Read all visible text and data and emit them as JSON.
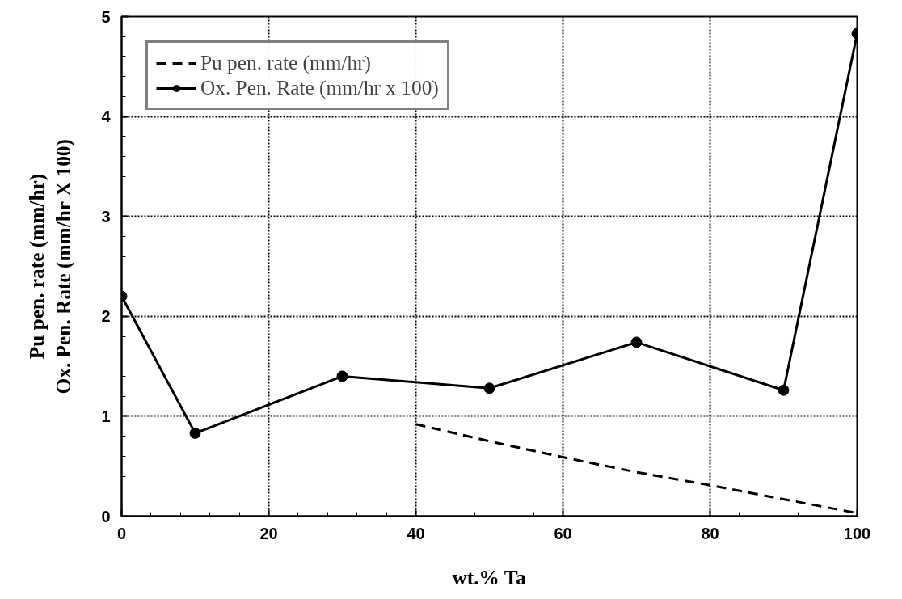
{
  "chart_data": {
    "type": "line",
    "xlabel": "wt.% Ta",
    "ylabel": "Pu pen. rate (mm/hr)\nOx. Pen. Rate (mm/hr X 100)",
    "xlim": [
      0,
      100
    ],
    "xticks": [
      0,
      20,
      40,
      60,
      80,
      100
    ],
    "ylim": [
      0,
      5
    ],
    "yticks": [
      0,
      1,
      2,
      3,
      4,
      5
    ],
    "grid": true,
    "legend": "top left",
    "series": [
      {
        "name": "Pu pen. rate (mm/hr)",
        "color": "#000000",
        "line_style": "dashed",
        "marker": "none",
        "x": [
          40,
          50,
          60,
          70,
          80,
          90,
          100
        ],
        "values": [
          0.92,
          0.75,
          0.59,
          0.44,
          0.31,
          0.17,
          0.03
        ]
      },
      {
        "name": "Ox. Pen. Rate (mm/hr x 100)",
        "color": "#000000",
        "line_style": "solid",
        "marker": "circle",
        "x": [
          0,
          10,
          30,
          50,
          70,
          90,
          100
        ],
        "values": [
          2.2,
          0.83,
          1.4,
          1.28,
          1.74,
          1.26,
          4.83
        ]
      }
    ]
  }
}
